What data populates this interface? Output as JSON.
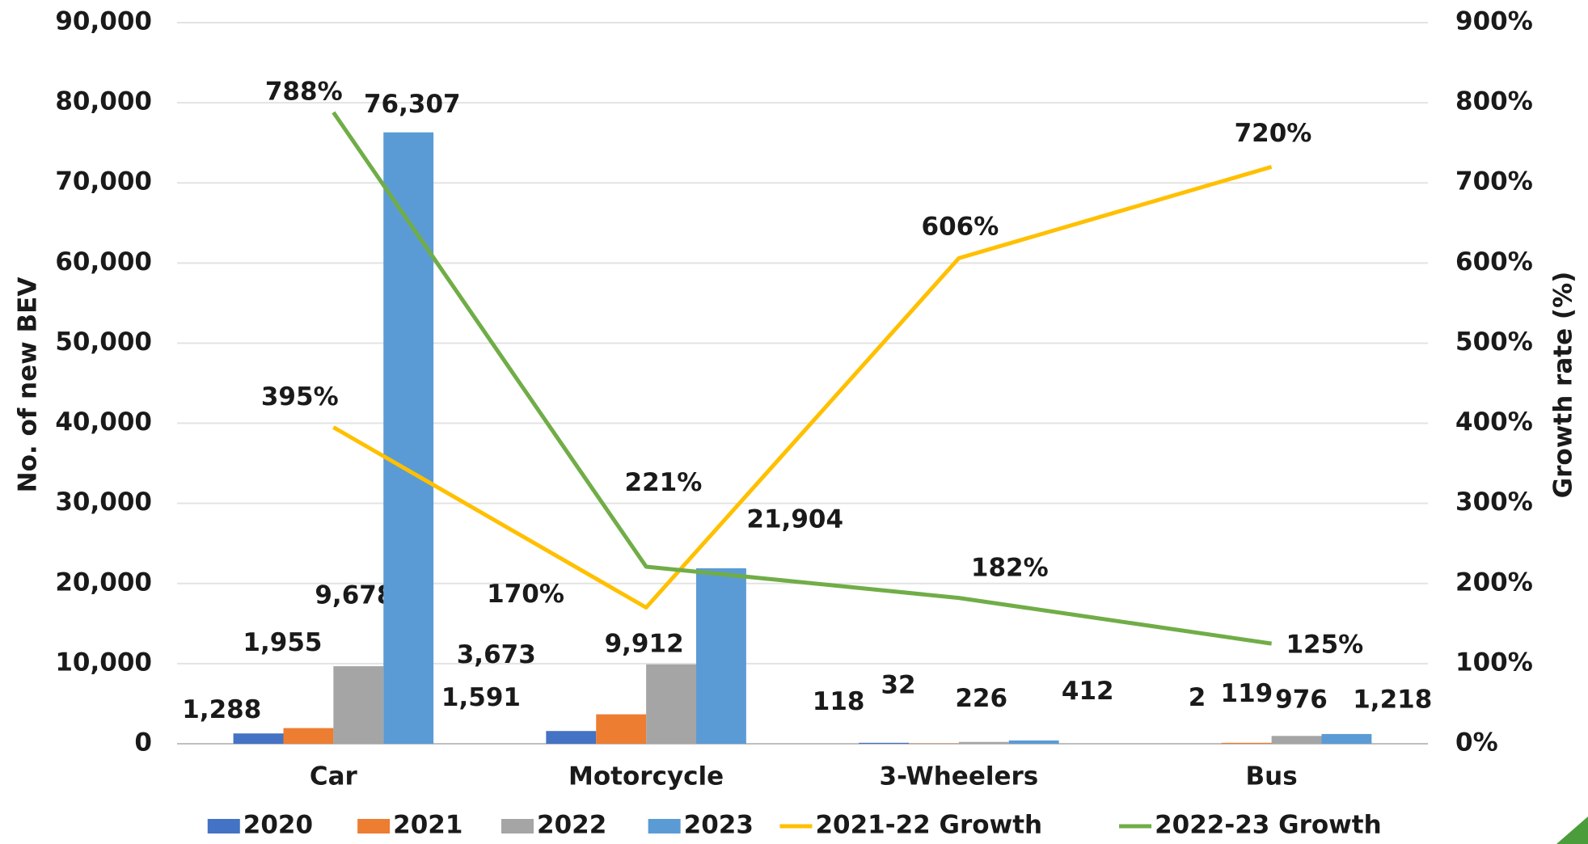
{
  "chart_data": {
    "type": "bar",
    "categories": [
      "Car",
      "Motorcycle",
      "3-Wheelers",
      "Bus"
    ],
    "ylabel": "No. of new BEV",
    "y2label": "Growth rate (%)",
    "ylim": [
      0,
      90000
    ],
    "yticks": [
      0,
      {
        "value": 10000,
        "label": "10,000"
      },
      {
        "value": 20000,
        "label": "20,000"
      },
      {
        "value": 30000,
        "label": "30,000"
      },
      {
        "value": 40000,
        "label": "40,000"
      },
      {
        "value": 50000,
        "label": "50,000"
      },
      {
        "value": 60000,
        "label": "60,000"
      },
      {
        "value": 70000,
        "label": "70,000"
      },
      {
        "value": 80000,
        "label": "80,000"
      },
      {
        "value": 90000,
        "label": "90,000"
      }
    ],
    "y2lim": [
      0,
      900
    ],
    "y2ticks": [
      {
        "value": 0,
        "label": "0%"
      },
      {
        "value": 100,
        "label": "100%"
      },
      {
        "value": 200,
        "label": "200%"
      },
      {
        "value": 300,
        "label": "300%"
      },
      {
        "value": 400,
        "label": "400%"
      },
      {
        "value": 500,
        "label": "500%"
      },
      {
        "value": 600,
        "label": "600%"
      },
      {
        "value": 700,
        "label": "700%"
      },
      {
        "value": 800,
        "label": "800%"
      },
      {
        "value": 900,
        "label": "900%"
      }
    ],
    "grid": true,
    "legend": "bottom",
    "series": [
      {
        "name": "2020",
        "color": "#4472c4",
        "values": [
          1288,
          1591,
          118,
          2
        ],
        "value_labels": [
          "1,288",
          "1,591",
          "118",
          "2"
        ]
      },
      {
        "name": "2021",
        "color": "#ed7d31",
        "values": [
          1955,
          3673,
          32,
          119
        ],
        "value_labels": [
          "1,955",
          "3,673",
          "32",
          "119"
        ]
      },
      {
        "name": "2022",
        "color": "#a5a5a5",
        "values": [
          9678,
          9912,
          226,
          976
        ],
        "value_labels": [
          "9,678",
          "9,912",
          "226",
          "976"
        ]
      },
      {
        "name": "2023",
        "color": "#5b9bd5",
        "values": [
          76307,
          21904,
          412,
          1218
        ],
        "value_labels": [
          "76,307",
          "21,904",
          "412",
          "1,218"
        ]
      },
      {
        "name": "2021-22 Growth",
        "type": "line",
        "axis": "y2",
        "color": "#ffc000",
        "values": [
          395,
          170,
          606,
          720
        ],
        "value_labels": [
          "395%",
          "170%",
          "606%",
          "720%"
        ]
      },
      {
        "name": "2022-23 Growth",
        "type": "line",
        "axis": "y2",
        "color": "#70ad47",
        "values": [
          788,
          221,
          182,
          125
        ],
        "value_labels": [
          "788%",
          "221%",
          "182%",
          "125%"
        ]
      }
    ]
  }
}
